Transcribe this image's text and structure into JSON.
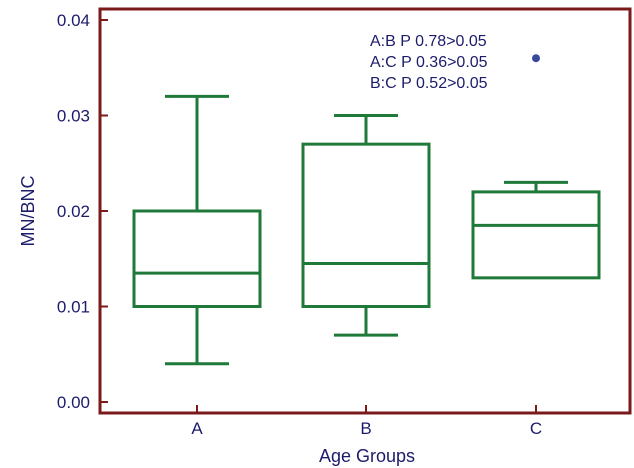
{
  "colors": {
    "frame": "#7b1a1a",
    "box": "#1f7a3a",
    "text": "#1c1c6b",
    "outlier": "#3a4a9a"
  },
  "chart_data": {
    "type": "box",
    "xlabel": "Age Groups",
    "ylabel": "MN/BNC",
    "ylim": [
      0,
      0.04
    ],
    "yticks": [
      "0.00",
      "0.01",
      "0.02",
      "0.03",
      "0.04"
    ],
    "categories": [
      "A",
      "B",
      "C"
    ],
    "boxes": [
      {
        "category": "A",
        "whisker_low": 0.004,
        "q1": 0.01,
        "median": 0.0135,
        "q3": 0.02,
        "whisker_high": 0.032
      },
      {
        "category": "B",
        "whisker_low": 0.007,
        "q1": 0.01,
        "median": 0.0145,
        "q3": 0.027,
        "whisker_high": 0.03
      },
      {
        "category": "C",
        "whisker_low": 0.013,
        "q1": 0.013,
        "median": 0.0185,
        "q3": 0.022,
        "whisker_high": 0.023
      }
    ],
    "outliers": [
      {
        "category": "C",
        "value": 0.036
      }
    ],
    "grid": false,
    "annotations": [
      "A:B P 0.78>0.05",
      "A:C P 0.36>0.05",
      "B:C P 0.52>0.05"
    ]
  }
}
